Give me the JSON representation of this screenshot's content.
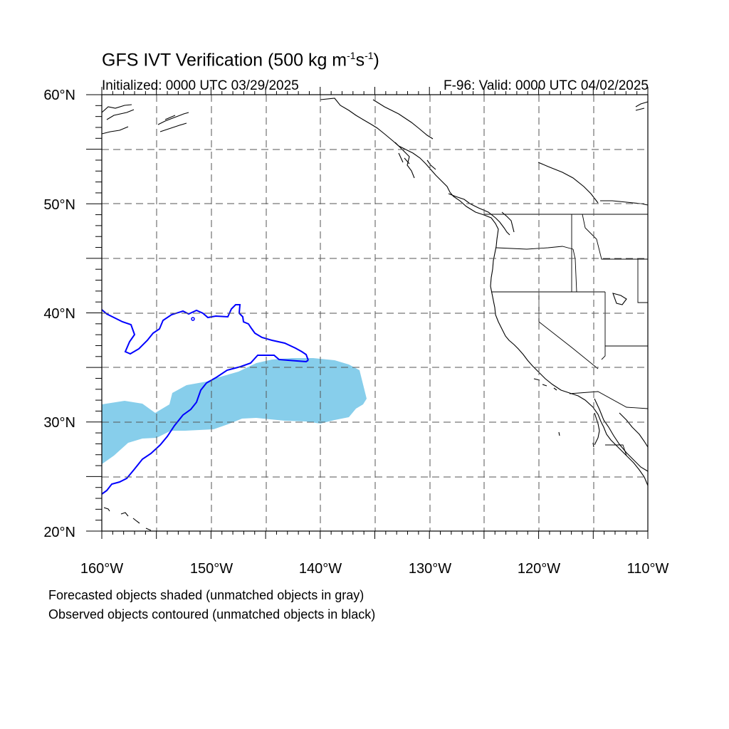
{
  "title": {
    "main": "GFS IVT Verification (500 kg m",
    "exp1": "-1",
    "mid": "s",
    "exp2": "-1",
    "end": ")"
  },
  "initialized": "Initialized: 0000 UTC 03/29/2025",
  "valid": "F-96: Valid: 0000 UTC 04/02/2025",
  "axes": {
    "lat_labels": [
      "60°N",
      "50°N",
      "40°N",
      "30°N",
      "20°N"
    ],
    "lon_labels": [
      "160°W",
      "150°W",
      "140°W",
      "130°W",
      "120°W",
      "110°W"
    ],
    "lat_range": [
      20,
      60
    ],
    "lon_range": [
      -160,
      -110
    ]
  },
  "legend": {
    "line1": "Forecasted objects shaded (unmatched objects in gray)",
    "line2": "Observed objects contoured (unmatched objects in black)"
  },
  "colors": {
    "forecast_fill": "#87ceeb",
    "observed_contour": "#0000ff",
    "coastline": "#000000"
  }
}
